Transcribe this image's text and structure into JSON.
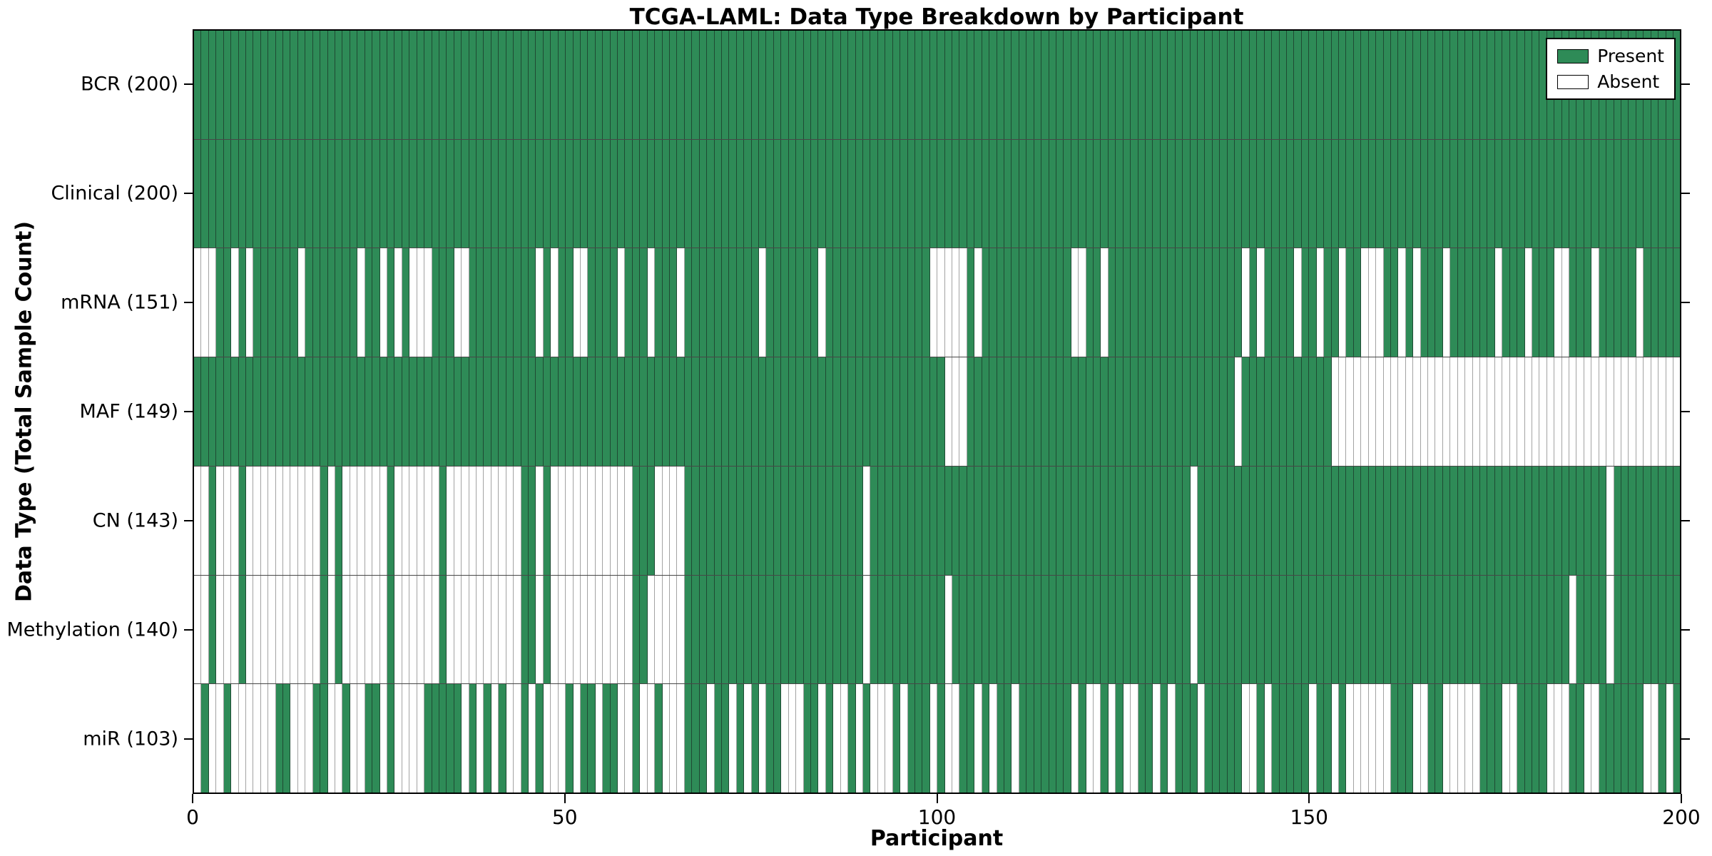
{
  "title": "TCGA-LAML: Data Type Breakdown by Participant",
  "axes": {
    "xlabel": "Participant",
    "ylabel": "Data Type (Total Sample Count)",
    "x_ticks": [
      0,
      50,
      100,
      150,
      200
    ]
  },
  "legend": {
    "present": "Present",
    "absent": "Absent"
  },
  "colors": {
    "present": "#2e8b57",
    "absent": "#ffffff",
    "present_edge": "#1f4a33",
    "absent_edge": "#a3a3a3",
    "frame": "#000000"
  },
  "chart_data": {
    "type": "heatmap",
    "title": "TCGA-LAML: Data Type Breakdown by Participant",
    "xlabel": "Participant",
    "ylabel": "Data Type (Total Sample Count)",
    "x_range": [
      0,
      200
    ],
    "x_ticks": [
      0,
      50,
      100,
      150,
      200
    ],
    "n_participants": 200,
    "legend_entries": [
      "Present",
      "Absent"
    ],
    "legend_position": "upper right",
    "cell_encoding": "1 = Present (green), 0 = Absent (white); absent_indices lists participant indices (0-199) with data absent",
    "rows": [
      {
        "name": "BCR",
        "label": "BCR (200)",
        "present_count": 200,
        "absent_indices": []
      },
      {
        "name": "Clinical",
        "label": "Clinical (200)",
        "present_count": 200,
        "absent_indices": []
      },
      {
        "name": "mRNA",
        "label": "mRNA (151)",
        "present_count": 151,
        "absent_indices": [
          0,
          1,
          2,
          5,
          7,
          14,
          22,
          25,
          27,
          29,
          30,
          31,
          35,
          36,
          46,
          48,
          51,
          52,
          57,
          61,
          65,
          76,
          84,
          99,
          100,
          101,
          102,
          103,
          105,
          118,
          119,
          122,
          141,
          143,
          148,
          151,
          154,
          157,
          158,
          159,
          162,
          164,
          168,
          175,
          179,
          183,
          184,
          188,
          194
        ]
      },
      {
        "name": "MAF",
        "label": "MAF (149)",
        "present_count": 149,
        "absent_indices": [
          101,
          102,
          103,
          140,
          153,
          154,
          155,
          156,
          157,
          158,
          159,
          160,
          161,
          162,
          163,
          164,
          165,
          166,
          167,
          168,
          169,
          170,
          171,
          172,
          173,
          174,
          175,
          176,
          177,
          178,
          179,
          180,
          181,
          182,
          183,
          184,
          185,
          186,
          187,
          188,
          189,
          190,
          191,
          192,
          193,
          194,
          195,
          196,
          197,
          198,
          199
        ]
      },
      {
        "name": "CN",
        "label": "CN (143)",
        "present_count": 143,
        "absent_indices": [
          0,
          1,
          3,
          4,
          5,
          7,
          8,
          9,
          10,
          11,
          12,
          13,
          14,
          15,
          16,
          18,
          20,
          21,
          22,
          23,
          24,
          25,
          27,
          28,
          29,
          30,
          31,
          32,
          34,
          35,
          36,
          37,
          38,
          39,
          40,
          41,
          42,
          43,
          46,
          48,
          49,
          50,
          51,
          52,
          53,
          54,
          55,
          56,
          57,
          58,
          62,
          63,
          64,
          65,
          90,
          134,
          190
        ]
      },
      {
        "name": "Methylation",
        "label": "Methylation (140)",
        "present_count": 140,
        "absent_indices": [
          0,
          1,
          3,
          4,
          5,
          7,
          8,
          9,
          10,
          11,
          12,
          13,
          14,
          15,
          16,
          18,
          20,
          21,
          22,
          23,
          24,
          25,
          27,
          28,
          29,
          30,
          31,
          32,
          34,
          35,
          36,
          37,
          38,
          39,
          40,
          41,
          42,
          43,
          46,
          48,
          49,
          50,
          51,
          52,
          53,
          54,
          55,
          56,
          57,
          58,
          61,
          62,
          63,
          64,
          65,
          90,
          101,
          134,
          185,
          190
        ]
      },
      {
        "name": "miR",
        "label": "miR (103)",
        "present_count": 103,
        "absent_indices": [
          0,
          2,
          3,
          5,
          6,
          7,
          8,
          9,
          10,
          13,
          14,
          15,
          18,
          19,
          21,
          22,
          25,
          27,
          28,
          29,
          30,
          36,
          38,
          40,
          42,
          43,
          45,
          47,
          48,
          49,
          51,
          54,
          57,
          58,
          60,
          61,
          63,
          64,
          65,
          69,
          72,
          74,
          76,
          79,
          80,
          81,
          84,
          86,
          87,
          89,
          91,
          92,
          93,
          95,
          99,
          101,
          102,
          105,
          107,
          110,
          118,
          120,
          121,
          123,
          125,
          126,
          129,
          131,
          135,
          141,
          142,
          144,
          150,
          153,
          155,
          156,
          157,
          158,
          159,
          160,
          164,
          165,
          168,
          169,
          170,
          171,
          172,
          176,
          177,
          182,
          183,
          184,
          187,
          188,
          195,
          196,
          198
        ]
      }
    ]
  }
}
